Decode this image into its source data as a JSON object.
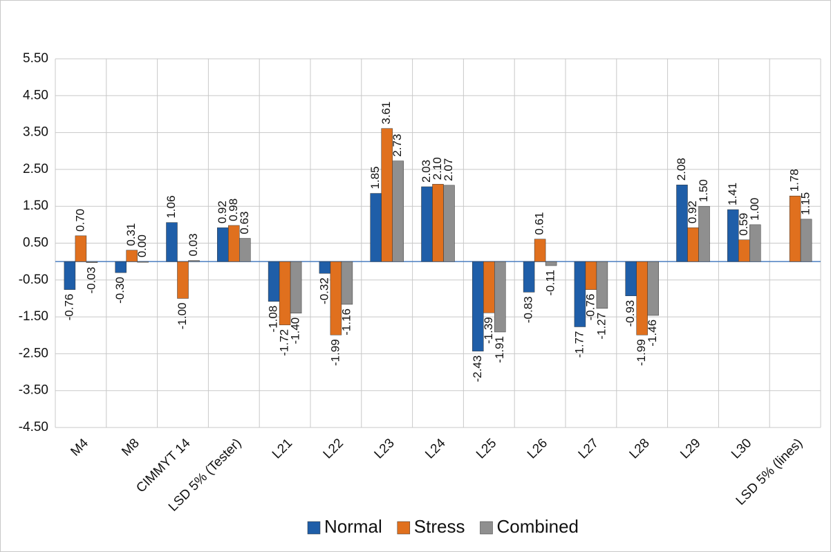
{
  "chart_data": {
    "type": "bar",
    "categories": [
      "M4",
      "M8",
      "CIMMYT 14",
      "LSD 5% (Tester)",
      "L21",
      "L22",
      "L23",
      "L24",
      "L25",
      "L26",
      "L27",
      "L28",
      "L29",
      "L30",
      "LSD 5% (lines)"
    ],
    "series": [
      {
        "name": "Normal",
        "color": "#1f5ea8",
        "values": [
          -0.76,
          -0.3,
          1.06,
          0.92,
          -1.08,
          -0.32,
          1.85,
          2.03,
          -2.43,
          -0.83,
          -1.77,
          -0.93,
          2.08,
          1.41,
          null
        ],
        "value_labels": [
          "-0.76",
          "-0.30",
          "1.06",
          "0.92",
          "-1.08",
          "-0.32",
          "1.85",
          "2.03",
          "-2.43",
          "-0.83",
          "-1.77",
          "-0.93",
          "2.08",
          "1.41",
          null
        ]
      },
      {
        "name": "Stress",
        "color": "#e0701e",
        "values": [
          0.7,
          0.31,
          -1.0,
          0.98,
          -1.72,
          -1.99,
          3.61,
          2.1,
          -1.39,
          0.61,
          -0.76,
          -1.99,
          0.92,
          0.59,
          1.78
        ],
        "value_labels": [
          "0.70",
          "0.31",
          "-1.00",
          "0.98",
          "-1.72",
          "-1.99",
          "3.61",
          "2.10",
          "-1.39",
          "0.61",
          "-0.76",
          "-1.99",
          "0.92",
          "0.59",
          "1.78"
        ]
      },
      {
        "name": "Combined",
        "color": "#8f8f8f",
        "values": [
          -0.03,
          0.0,
          0.03,
          0.63,
          -1.4,
          -1.16,
          2.73,
          2.07,
          -1.91,
          -0.11,
          -1.27,
          -1.46,
          1.5,
          1.0,
          1.15
        ],
        "value_labels": [
          "-0.03",
          "0.00",
          "0.03",
          "0.63",
          "-1.40",
          "-1.16",
          "2.73",
          "2.07",
          "-1.91",
          "-0.11",
          "-1.27",
          "-1.46",
          "1.50",
          "1.00",
          "1.15"
        ]
      }
    ],
    "ylim": [
      -4.5,
      5.5
    ],
    "yticks": [
      {
        "value": -4.5,
        "label": "-4.50"
      },
      {
        "value": -3.5,
        "label": "-3.50"
      },
      {
        "value": -2.5,
        "label": "-2.50"
      },
      {
        "value": -1.5,
        "label": "-1.50"
      },
      {
        "value": -0.5,
        "label": "-0.50"
      },
      {
        "value": 0.5,
        "label": "0.50"
      },
      {
        "value": 1.5,
        "label": "1.50"
      },
      {
        "value": 2.5,
        "label": "2.50"
      },
      {
        "value": 3.5,
        "label": "3.50"
      },
      {
        "value": 4.5,
        "label": "4.50"
      },
      {
        "value": 5.5,
        "label": "5.50"
      }
    ],
    "grid": true,
    "legend": "bottom"
  }
}
